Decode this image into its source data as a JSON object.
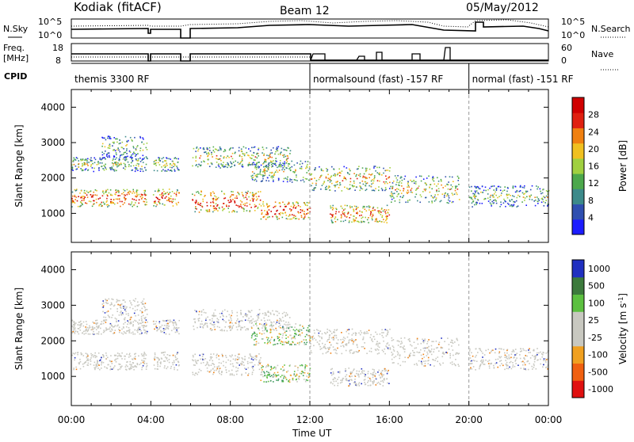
{
  "header": {
    "station": "Kodiak (fitACF)",
    "beam": "Beam 12",
    "date": "05/May/2012"
  },
  "summary_panels": {
    "nsky_label": "N.Sky",
    "nsearch_label": "N.Search",
    "nsky_ticks": [
      "10^5",
      "10^0"
    ],
    "nsearch_ticks": [
      "10^5",
      "10^0"
    ],
    "freq_label_1": "Freq.",
    "freq_label_2": "[MHz]",
    "freq_ticks": [
      "18",
      "8"
    ],
    "nave_label": "Nave",
    "nave_ticks": [
      "60",
      "0"
    ],
    "cpid_label": "CPID"
  },
  "cpid_segments": [
    {
      "label": "themis 3300 RF",
      "start": 0,
      "end": 12
    },
    {
      "label": "normalsound (fast) -157 RF",
      "start": 12,
      "end": 20
    },
    {
      "label": "normal (fast) -151 RF",
      "start": 20,
      "end": 24
    }
  ],
  "chart_data": [
    {
      "type": "heatmap",
      "name": "Power",
      "ylabel": "Slant Range [km]",
      "xlabel": "Time UT",
      "xlim": [
        0,
        24
      ],
      "ylim": [
        180,
        4500
      ],
      "x_ticks": [
        "00:00",
        "04:00",
        "08:00",
        "12:00",
        "16:00",
        "20:00",
        "00:00"
      ],
      "y_ticks": [
        1000,
        2000,
        3000,
        4000
      ],
      "colorbar": {
        "label": "Power [dB]",
        "ticks": [
          "4",
          "8",
          "12",
          "16",
          "20",
          "24",
          "28"
        ],
        "colors": [
          "#1c1cff",
          "#2f4fb0",
          "#3c8a8a",
          "#4ca84c",
          "#a0d040",
          "#f0c020",
          "#f08010",
          "#e02010",
          "#d00000"
        ]
      }
    },
    {
      "type": "heatmap",
      "name": "Velocity",
      "ylabel": "Slant Range [km]",
      "xlabel": "Time UT",
      "xlim": [
        0,
        24
      ],
      "ylim": [
        180,
        4500
      ],
      "x_ticks": [
        "00:00",
        "04:00",
        "08:00",
        "12:00",
        "16:00",
        "20:00",
        "00:00"
      ],
      "y_ticks": [
        1000,
        2000,
        3000,
        4000
      ],
      "colorbar": {
        "label": "Velocity [m s",
        "label_exp": "-1",
        "label_end": "]",
        "ticks": [
          "1000",
          "500",
          "100",
          "25",
          "-25",
          "-100",
          "-500",
          "-1000"
        ],
        "colors": [
          "#2030c0",
          "#3c7a3c",
          "#5cc040",
          "#c8c8c0",
          "#c8c8c0",
          "#f0a020",
          "#f06010",
          "#e01010"
        ]
      }
    }
  ]
}
